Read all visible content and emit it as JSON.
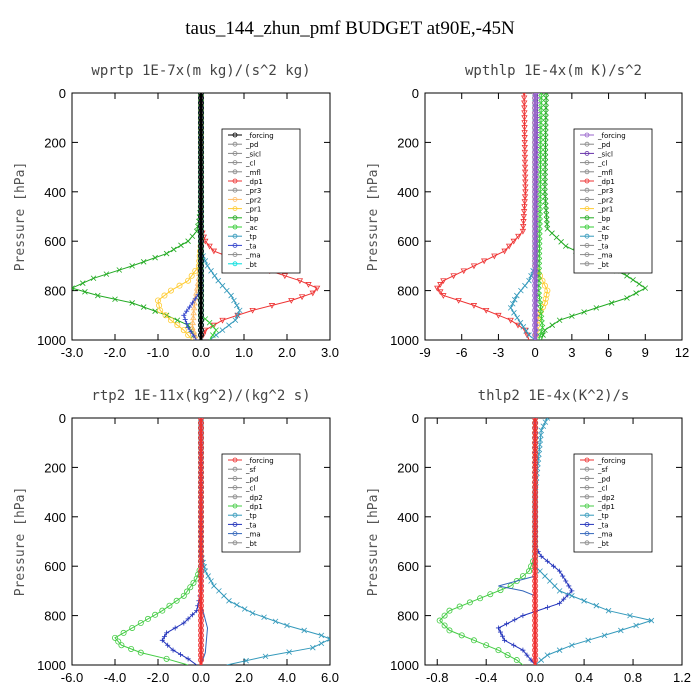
{
  "figure_title": "taus_144_zhun_pmf  BUDGET at90E,-45N",
  "chart_data": [
    {
      "type": "line",
      "title": "wprtp  1E-7x(m kg)/(s^2 kg)",
      "ylabel": "Pressure [hPa]",
      "xlim": [
        -3.0,
        3.0
      ],
      "ylim": [
        1000,
        0
      ],
      "y_reversed": true,
      "xticks": [
        "-3.0",
        "-2.0",
        "-1.0",
        "0.0",
        "1.0",
        "2.0",
        "3.0"
      ],
      "yticks": [
        "0",
        "200",
        "400",
        "600",
        "800",
        "1000"
      ],
      "legend": [
        "_forcing",
        "_pd",
        "_sicl",
        "_cl",
        "_mfl",
        "_dp1",
        "_pr3",
        "_pr2",
        "_pr1",
        "_bp",
        "_ac",
        "_tp",
        "_ta",
        "_ma",
        "_bt"
      ],
      "series": [
        {
          "name": "_bp",
          "color": "#22aa22",
          "marker": "x",
          "points": [
            [
              0,
              0
            ],
            [
              0,
              450
            ],
            [
              -0.05,
              520
            ],
            [
              -0.1,
              560
            ],
            [
              -0.3,
              600
            ],
            [
              -0.8,
              650
            ],
            [
              -1.6,
              700
            ],
            [
              -2.5,
              750
            ],
            [
              -3.0,
              790
            ],
            [
              -2.4,
              820
            ],
            [
              -1.6,
              850
            ],
            [
              -0.8,
              900
            ],
            [
              -0.3,
              940
            ],
            [
              -0.1,
              1000
            ]
          ]
        },
        {
          "name": "_dp1",
          "color": "#ee3333",
          "marker": "v",
          "points": [
            [
              0,
              0
            ],
            [
              0,
              550
            ],
            [
              0.1,
              600
            ],
            [
              0.3,
              640
            ],
            [
              0.9,
              680
            ],
            [
              1.6,
              720
            ],
            [
              2.3,
              760
            ],
            [
              2.7,
              790
            ],
            [
              2.6,
              810
            ],
            [
              2.1,
              840
            ],
            [
              1.2,
              880
            ],
            [
              0.5,
              920
            ],
            [
              0.1,
              960
            ],
            [
              0,
              1000
            ]
          ]
        },
        {
          "name": "_pr1",
          "color": "#ffcc33",
          "marker": "o",
          "points": [
            [
              0,
              0
            ],
            [
              0,
              600
            ],
            [
              -0.05,
              700
            ],
            [
              -0.3,
              760
            ],
            [
              -0.7,
              800
            ],
            [
              -1.0,
              840
            ],
            [
              -0.95,
              880
            ],
            [
              -0.7,
              920
            ],
            [
              -0.4,
              960
            ],
            [
              -0.2,
              1000
            ]
          ]
        },
        {
          "name": "_pr2",
          "color": "#ffbb66",
          "marker": "^",
          "points": [
            [
              0,
              0
            ],
            [
              0,
              650
            ],
            [
              -0.05,
              750
            ],
            [
              -0.15,
              850
            ],
            [
              -0.2,
              950
            ],
            [
              -0.1,
              1000
            ]
          ]
        },
        {
          "name": "_tp",
          "color": "#3399bb",
          "marker": "*",
          "points": [
            [
              0,
              0
            ],
            [
              0,
              640
            ],
            [
              0.15,
              700
            ],
            [
              0.4,
              760
            ],
            [
              0.7,
              820
            ],
            [
              0.9,
              880
            ],
            [
              0.8,
              920
            ],
            [
              0.5,
              960
            ],
            [
              0.2,
              1000
            ]
          ]
        },
        {
          "name": "_ta",
          "color": "#3344cc",
          "marker": "+",
          "points": [
            [
              0,
              0
            ],
            [
              0,
              800
            ],
            [
              -0.2,
              850
            ],
            [
              -0.4,
              900
            ],
            [
              -0.3,
              950
            ],
            [
              -0.1,
              1000
            ]
          ]
        },
        {
          "name": "_ac",
          "color": "#33cc33",
          "marker": "x",
          "points": [
            [
              0,
              0
            ],
            [
              0,
              900
            ],
            [
              0.2,
              930
            ],
            [
              0.35,
              960
            ],
            [
              0.2,
              1000
            ]
          ]
        },
        {
          "name": "_bt",
          "color": "#00dddd",
          "marker": "o",
          "points": [
            [
              0,
              0
            ],
            [
              0,
              1000
            ]
          ]
        },
        {
          "name": "_forcing",
          "color": "#000000",
          "marker": "o",
          "points": [
            [
              0,
              0
            ],
            [
              0,
              1000
            ]
          ]
        }
      ]
    },
    {
      "type": "line",
      "title": "wpthlp  1E-4x(m K)/s^2",
      "ylabel": "Pressure [hPa]",
      "xlim": [
        -9,
        12
      ],
      "ylim": [
        1000,
        0
      ],
      "y_reversed": true,
      "xticks": [
        "-9",
        "-6",
        "-3",
        "0",
        "3",
        "6",
        "9",
        "12"
      ],
      "yticks": [
        "0",
        "200",
        "400",
        "600",
        "800",
        "1000"
      ],
      "legend": [
        "_forcing",
        "_pd",
        "_sicl",
        "_cl",
        "_mfl",
        "_dp1",
        "_pr3",
        "_pr2",
        "_pr1",
        "_bp",
        "_ac",
        "_tp",
        "_ta",
        "_ma",
        "_bt"
      ],
      "series": [
        {
          "name": "_bp",
          "color": "#22aa22",
          "marker": "x",
          "points": [
            [
              0.9,
              0
            ],
            [
              0.8,
              400
            ],
            [
              1.0,
              550
            ],
            [
              2.5,
              620
            ],
            [
              5.0,
              680
            ],
            [
              7.5,
              740
            ],
            [
              9.0,
              790
            ],
            [
              7.5,
              830
            ],
            [
              5.0,
              870
            ],
            [
              2.0,
              920
            ],
            [
              0.8,
              960
            ],
            [
              0.5,
              1000
            ]
          ]
        },
        {
          "name": "_dp1",
          "color": "#ee3333",
          "marker": "v",
          "points": [
            [
              -0.9,
              0
            ],
            [
              -0.8,
              400
            ],
            [
              -1.0,
              560
            ],
            [
              -2.5,
              640
            ],
            [
              -5.0,
              700
            ],
            [
              -7.5,
              760
            ],
            [
              -8.0,
              790
            ],
            [
              -7.5,
              820
            ],
            [
              -5.0,
              860
            ],
            [
              -2.0,
              920
            ],
            [
              -0.8,
              960
            ],
            [
              -0.5,
              1000
            ]
          ]
        },
        {
          "name": "_tp",
          "color": "#3399bb",
          "marker": "*",
          "points": [
            [
              0,
              0
            ],
            [
              0,
              700
            ],
            [
              -0.5,
              760
            ],
            [
              -1.5,
              820
            ],
            [
              -2.0,
              870
            ],
            [
              -1.2,
              930
            ],
            [
              -0.5,
              980
            ],
            [
              0,
              1000
            ]
          ]
        },
        {
          "name": "_pr1",
          "color": "#ffcc33",
          "marker": "o",
          "points": [
            [
              0,
              0
            ],
            [
              0,
              700
            ],
            [
              0.6,
              760
            ],
            [
              1.0,
              800
            ],
            [
              0.8,
              850
            ],
            [
              0.3,
              900
            ],
            [
              0,
              1000
            ]
          ]
        },
        {
          "name": "_ac",
          "color": "#33cc33",
          "marker": "x",
          "points": [
            [
              0.5,
              0
            ],
            [
              0.4,
              500
            ],
            [
              0.3,
              800
            ],
            [
              0.6,
              950
            ],
            [
              0.3,
              1000
            ]
          ]
        },
        {
          "name": "_sicl",
          "color": "#6633aa",
          "marker": "+",
          "points": [
            [
              0.2,
              0
            ],
            [
              0.1,
              500
            ],
            [
              0.1,
              1000
            ]
          ]
        },
        {
          "name": "_forcing",
          "color": "#9966cc",
          "marker": "o",
          "points": [
            [
              0,
              0
            ],
            [
              0,
              1000
            ]
          ]
        }
      ]
    },
    {
      "type": "line",
      "title": "rtp2  1E-11x(kg^2)/(kg^2 s)",
      "ylabel": "Pressure [hPa]",
      "xlim": [
        -6.0,
        6.0
      ],
      "ylim": [
        1000,
        0
      ],
      "y_reversed": true,
      "xticks": [
        "-6.0",
        "-4.0",
        "-2.0",
        "0.0",
        "2.0",
        "4.0",
        "6.0"
      ],
      "yticks": [
        "0",
        "200",
        "400",
        "600",
        "800",
        "1000"
      ],
      "legend": [
        "_forcing",
        "_sf",
        "_pd",
        "_cl",
        "_dp2",
        "_dp1",
        "_tp",
        "_ta",
        "_ma",
        "_bt"
      ],
      "series": [
        {
          "name": "_dp1",
          "color": "#44cc44",
          "marker": "o",
          "points": [
            [
              0,
              0
            ],
            [
              0,
              600
            ],
            [
              -0.2,
              650
            ],
            [
              -0.8,
              720
            ],
            [
              -1.8,
              780
            ],
            [
              -2.8,
              830
            ],
            [
              -3.6,
              870
            ],
            [
              -4.0,
              890
            ],
            [
              -3.7,
              920
            ],
            [
              -2.8,
              950
            ],
            [
              -1.6,
              975
            ],
            [
              -0.6,
              1000
            ]
          ]
        },
        {
          "name": "_tp",
          "color": "#3399bb",
          "marker": "*",
          "points": [
            [
              0,
              0
            ],
            [
              0,
              550
            ],
            [
              0.2,
              620
            ],
            [
              0.6,
              680
            ],
            [
              1.3,
              740
            ],
            [
              2.4,
              790
            ],
            [
              4.0,
              840
            ],
            [
              5.6,
              880
            ],
            [
              6.0,
              895
            ],
            [
              5.2,
              930
            ],
            [
              3.0,
              965
            ],
            [
              1.2,
              1000
            ]
          ]
        },
        {
          "name": "_ta",
          "color": "#2233bb",
          "marker": "+",
          "points": [
            [
              0,
              0
            ],
            [
              0,
              700
            ],
            [
              -0.2,
              780
            ],
            [
              -0.8,
              830
            ],
            [
              -1.6,
              870
            ],
            [
              -1.8,
              900
            ],
            [
              -1.3,
              940
            ],
            [
              -0.6,
              975
            ],
            [
              -0.2,
              1000
            ]
          ]
        },
        {
          "name": "_ma",
          "color": "#3366bb",
          "marker": "-",
          "points": [
            [
              0,
              0
            ],
            [
              0,
              750
            ],
            [
              0.3,
              850
            ],
            [
              0.2,
              950
            ],
            [
              0,
              1000
            ]
          ]
        },
        {
          "name": "_forcing",
          "color": "#ee3333",
          "marker": "o",
          "points": [
            [
              0,
              0
            ],
            [
              0,
              1000
            ]
          ]
        }
      ]
    },
    {
      "type": "line",
      "title": "thlp2  1E-4x(K^2)/s",
      "ylabel": "Pressure [hPa]",
      "xlim": [
        -0.9,
        1.2
      ],
      "ylim": [
        1000,
        0
      ],
      "y_reversed": true,
      "xticks": [
        "-0.8",
        "-0.4",
        "0.0",
        "0.4",
        "0.8",
        "1.2"
      ],
      "yticks": [
        "0",
        "200",
        "400",
        "600",
        "800",
        "1000"
      ],
      "legend": [
        "_forcing",
        "_sf",
        "_pd",
        "_cl",
        "_dp2",
        "_dp1",
        "_tp",
        "_ta",
        "_ma",
        "_bt"
      ],
      "series": [
        {
          "name": "_dp1",
          "color": "#44cc44",
          "marker": "o",
          "points": [
            [
              0,
              0
            ],
            [
              0,
              560
            ],
            [
              -0.05,
              620
            ],
            [
              -0.2,
              680
            ],
            [
              -0.45,
              730
            ],
            [
              -0.7,
              780
            ],
            [
              -0.78,
              820
            ],
            [
              -0.7,
              860
            ],
            [
              -0.5,
              900
            ],
            [
              -0.3,
              940
            ],
            [
              -0.15,
              980
            ],
            [
              -0.1,
              1000
            ]
          ]
        },
        {
          "name": "_ta",
          "color": "#2233bb",
          "marker": "+",
          "points": [
            [
              0,
              0
            ],
            [
              0,
              520
            ],
            [
              0.05,
              560
            ],
            [
              0.2,
              620
            ],
            [
              0.3,
              700
            ],
            [
              0.2,
              750
            ],
            [
              -0.1,
              800
            ],
            [
              -0.3,
              850
            ],
            [
              -0.25,
              900
            ],
            [
              -0.1,
              940
            ],
            [
              0,
              1000
            ]
          ]
        },
        {
          "name": "_tp",
          "color": "#3399bb",
          "marker": "*",
          "points": [
            [
              0.1,
              0
            ],
            [
              0.05,
              50
            ],
            [
              0,
              300
            ],
            [
              0,
              600
            ],
            [
              0.2,
              700
            ],
            [
              0.6,
              780
            ],
            [
              0.95,
              820
            ],
            [
              0.7,
              860
            ],
            [
              0.3,
              920
            ],
            [
              0.1,
              960
            ],
            [
              0,
              1000
            ]
          ]
        },
        {
          "name": "_ma",
          "color": "#3366bb",
          "marker": "-",
          "points": [
            [
              0,
              0
            ],
            [
              0,
              640
            ],
            [
              -0.3,
              680
            ],
            [
              -0.1,
              700
            ],
            [
              0,
              720
            ],
            [
              0,
              1000
            ]
          ]
        },
        {
          "name": "_forcing",
          "color": "#ee3333",
          "marker": "o",
          "points": [
            [
              0,
              0
            ],
            [
              0,
              1000
            ]
          ]
        }
      ]
    }
  ]
}
